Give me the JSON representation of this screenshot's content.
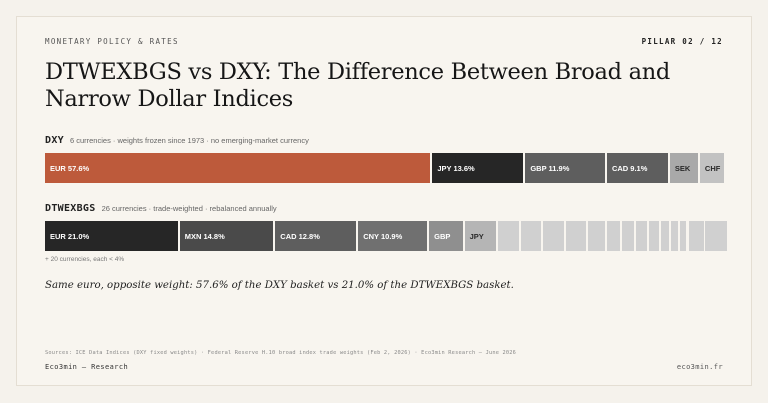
{
  "header": {
    "kicker": "MONETARY POLICY & RATES",
    "pillar": "PILLAR 02 / 12",
    "title": "DTWEXBGS vs DXY: The Difference Between Broad and Narrow Dollar Indices"
  },
  "chart_data": [
    {
      "type": "bar",
      "orientation": "stacked-horizontal",
      "name": "DXY",
      "subtitle": "6 currencies · weights frozen since 1973 · no emerging-market currency",
      "categories": [
        "EUR",
        "JPY",
        "GBP",
        "CAD",
        "SEK",
        "CHF"
      ],
      "values": [
        57.6,
        13.6,
        11.9,
        9.1,
        4.2,
        3.6
      ],
      "labels": [
        "EUR 57.6%",
        "JPY 13.6%",
        "GBP 11.9%",
        "CAD 9.1%",
        "SEK",
        "CHF"
      ],
      "colors": [
        "#bd5a3b",
        "#262626",
        "#5e5e5e",
        "#5e5e5e",
        "#a9a9a9",
        "#c2c2c2"
      ]
    },
    {
      "type": "bar",
      "orientation": "stacked-horizontal",
      "name": "DTWEXBGS",
      "subtitle": "26 currencies · trade-weighted · rebalanced annually",
      "categories": [
        "EUR",
        "MXN",
        "CAD",
        "CNY",
        "GBP",
        "JPY",
        "other 1",
        "other 2",
        "other 3",
        "other 4",
        "other 5",
        "other 6",
        "other 7",
        "other 8",
        "other 9",
        "other 10",
        "other 11",
        "other 12",
        "other 13",
        "other 14",
        "other 15",
        "other 16",
        "other 17",
        "other 18",
        "other 19",
        "other 20"
      ],
      "values": [
        21.0,
        14.8,
        12.8,
        10.9,
        5.3,
        5.0,
        3.3,
        3.2,
        3.2,
        3.2,
        2.7,
        2.1,
        1.8,
        1.8,
        1.6,
        1.2,
        1.2,
        1.0,
        0.6,
        0.5,
        0.5,
        0.5,
        0.4,
        0.3,
        0.3,
        0.3
      ],
      "labels": [
        "EUR 21.0%",
        "MXN 14.8%",
        "CAD 12.8%",
        "CNY 10.9%",
        "GBP",
        "JPY"
      ],
      "colors": [
        "#262626",
        "#4a4a4a",
        "#5e5e5e",
        "#707070",
        "#8f8f8f",
        "#b5b5b5",
        "#d0d0d0"
      ],
      "note": "+ 20 currencies, each < 4%"
    }
  ],
  "caption": "Same euro, opposite weight: 57.6% of the DXY basket vs 21.0% of the DTWEXBGS basket.",
  "footer": {
    "sources": "Sources: ICE Data Indices (DXY fixed weights) · Federal Reserve H.10 broad index trade weights (Feb 2, 2026) · Eco3min Research — June 2026",
    "brand": "Eco3min — Research",
    "site": "eco3min.fr"
  }
}
